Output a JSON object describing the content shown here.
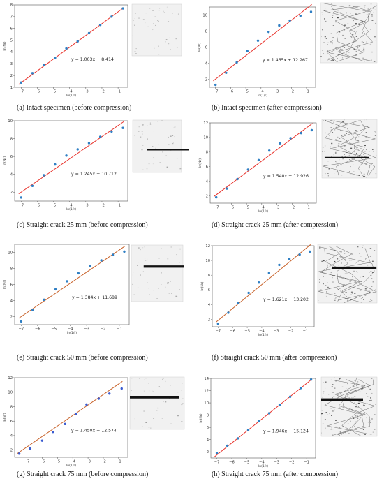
{
  "colors": {
    "fit_line": "#e8312a",
    "fit_line_alt": "#c8622a",
    "points": "#2f7fc4",
    "points_alt": "#3a5bd0",
    "axes": "#555555"
  },
  "chart_data": [
    {
      "type": "scatter",
      "caption": "(a)  Intact specimen (before compression)",
      "xlabel": "ln(1/r)",
      "ylabel": "ln(Nr)",
      "equation": "y = 1.003x + 8.414",
      "slope": 1.003,
      "intercept": 8.414,
      "xlim": [
        -7.4,
        -0.4
      ],
      "ylim": [
        1,
        8
      ],
      "xticks": [
        -7,
        -6,
        -5,
        -4,
        -3,
        -2,
        -1
      ],
      "yticks": [
        1,
        2,
        3,
        4,
        5,
        6,
        7,
        8
      ],
      "x": [
        -7.0,
        -6.3,
        -5.6,
        -4.9,
        -4.2,
        -3.5,
        -2.8,
        -2.1,
        -1.4,
        -0.7
      ],
      "y": [
        1.4,
        2.2,
        2.9,
        3.5,
        4.3,
        4.9,
        5.6,
        6.3,
        7.0,
        7.7
      ]
    },
    {
      "type": "scatter",
      "caption": "(b)  Intact specimen (after compression)",
      "xlabel": "ln(1/r)",
      "ylabel": "ln(Nr)",
      "equation": "y = 1.465x + 12.267",
      "slope": 1.465,
      "intercept": 12.267,
      "xlim": [
        -7.4,
        -0.4
      ],
      "ylim": [
        1,
        11
      ],
      "xticks": [
        -7,
        -6,
        -5,
        -4,
        -3,
        -2,
        -1
      ],
      "yticks": [
        2,
        4,
        6,
        8,
        10
      ],
      "x": [
        -7.0,
        -6.3,
        -5.6,
        -4.9,
        -4.2,
        -3.5,
        -2.8,
        -2.1,
        -1.4,
        -0.7
      ],
      "y": [
        1.3,
        2.8,
        4.1,
        5.5,
        6.8,
        7.9,
        8.7,
        9.3,
        9.9,
        10.4
      ]
    },
    {
      "type": "scatter",
      "caption": "(c) Straight crack 25 mm (before compression)",
      "xlabel": "ln(1/r)",
      "ylabel": "ln(Nr)",
      "equation": "y = 1.245x + 10.712",
      "slope": 1.245,
      "intercept": 10.712,
      "xlim": [
        -7.4,
        -0.4
      ],
      "ylim": [
        1,
        10
      ],
      "xticks": [
        -7,
        -6,
        -5,
        -4,
        -3,
        -2,
        -1
      ],
      "yticks": [
        2,
        4,
        6,
        8,
        10
      ],
      "x": [
        -7.0,
        -6.3,
        -5.6,
        -4.9,
        -4.2,
        -3.5,
        -2.8,
        -2.1,
        -1.4,
        -0.7
      ],
      "y": [
        1.4,
        2.7,
        3.9,
        5.1,
        6.1,
        6.8,
        7.5,
        8.2,
        8.8,
        9.2
      ]
    },
    {
      "type": "scatter",
      "caption": "(d) Straight crack 25 mm (after compression)",
      "xlabel": "ln(1/r)",
      "ylabel": "ln(Nr)",
      "equation": "y = 1.540x + 12.926",
      "slope": 1.54,
      "intercept": 12.926,
      "xlim": [
        -7.4,
        -0.4
      ],
      "ylim": [
        1,
        12
      ],
      "xticks": [
        -7,
        -6,
        -5,
        -4,
        -3,
        -2,
        -1
      ],
      "yticks": [
        2,
        4,
        6,
        8,
        10,
        12
      ],
      "x": [
        -7.0,
        -6.3,
        -5.6,
        -4.9,
        -4.2,
        -3.5,
        -2.8,
        -2.1,
        -1.4,
        -0.7
      ],
      "y": [
        1.8,
        3.0,
        4.3,
        5.6,
        6.9,
        8.2,
        9.2,
        9.9,
        10.6,
        11.0
      ]
    },
    {
      "type": "scatter",
      "caption": "(e) Straight crack 50 mm (before compression)",
      "xlabel": "ln(1/r)",
      "ylabel": "ln(Nr)",
      "equation": "y = 1.384x + 11.689",
      "slope": 1.384,
      "intercept": 11.689,
      "xlim": [
        -7.4,
        -0.4
      ],
      "ylim": [
        1,
        11
      ],
      "xticks": [
        -7,
        -6,
        -5,
        -4,
        -3,
        -2,
        -1
      ],
      "yticks": [
        2,
        4,
        6,
        8,
        10
      ],
      "x": [
        -7.0,
        -6.3,
        -5.6,
        -4.9,
        -4.2,
        -3.5,
        -2.8,
        -2.1,
        -1.4,
        -0.7
      ],
      "y": [
        1.4,
        2.8,
        4.1,
        5.4,
        6.4,
        7.4,
        8.3,
        9.0,
        9.7,
        10.1
      ]
    },
    {
      "type": "scatter",
      "caption": "(f) Straight crack 50 mm (after compression)",
      "xlabel": "ln(1/r)",
      "ylabel": "ln(Nr)",
      "equation": "y = 1.621x + 13.202",
      "slope": 1.621,
      "intercept": 13.202,
      "xlim": [
        -7.4,
        -0.4
      ],
      "ylim": [
        1,
        12
      ],
      "xticks": [
        -7,
        -6,
        -5,
        -4,
        -3,
        -2,
        -1
      ],
      "yticks": [
        2,
        4,
        6,
        8,
        10,
        12
      ],
      "x": [
        -7.0,
        -6.3,
        -5.6,
        -4.9,
        -4.2,
        -3.5,
        -2.8,
        -2.1,
        -1.4,
        -0.7
      ],
      "y": [
        1.4,
        2.9,
        4.2,
        5.6,
        7.0,
        8.3,
        9.4,
        10.2,
        10.8,
        11.2
      ]
    },
    {
      "type": "scatter",
      "caption": "(g) Straight crack 75 mm (before compression)",
      "xlabel": "ln(1/r)",
      "ylabel": "ln(Nr)",
      "equation": "y = 1.450x + 12.574",
      "slope": 1.45,
      "intercept": 12.574,
      "xlim": [
        -7.8,
        -0.4
      ],
      "ylim": [
        1,
        12
      ],
      "xticks": [
        -7,
        -6,
        -5,
        -4,
        -3,
        -2,
        -1
      ],
      "yticks": [
        2,
        4,
        6,
        8,
        10,
        12
      ],
      "x": [
        -7.5,
        -6.8,
        -6.0,
        -5.3,
        -4.5,
        -3.8,
        -3.1,
        -2.3,
        -1.6,
        -0.8
      ],
      "y": [
        1.5,
        2.2,
        3.3,
        4.5,
        5.6,
        7.0,
        8.3,
        9.1,
        9.8,
        10.5
      ]
    },
    {
      "type": "scatter",
      "caption": "(h) Straight crack 75 mm (after compression)",
      "xlabel": "ln(1/r)",
      "ylabel": "ln(Nr)",
      "equation": "y = 1.946x + 15.124",
      "slope": 1.946,
      "intercept": 15.124,
      "xlim": [
        -7.4,
        -0.4
      ],
      "ylim": [
        1,
        14
      ],
      "xticks": [
        -7,
        -6,
        -5,
        -4,
        -3,
        -2,
        -1
      ],
      "yticks": [
        2,
        4,
        6,
        8,
        10,
        12,
        14
      ],
      "x": [
        -7.0,
        -6.3,
        -5.6,
        -4.9,
        -4.2,
        -3.5,
        -2.8,
        -2.1,
        -1.4,
        -0.7
      ],
      "y": [
        1.8,
        3.0,
        4.2,
        5.6,
        7.0,
        8.3,
        9.7,
        11.0,
        12.4,
        13.8
      ]
    }
  ]
}
